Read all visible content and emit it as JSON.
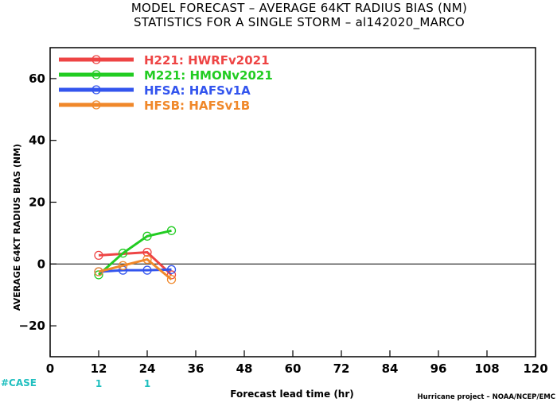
{
  "header": {
    "title_line1": "MODEL FORECAST – AVERAGE 64KT RADIUS BIAS (NM)",
    "title_line2": "STATISTICS FOR A SINGLE STORM – al142020_MARCO"
  },
  "chart_data": {
    "type": "line",
    "title": "MODEL FORECAST – AVERAGE 64KT RADIUS BIAS (NM)",
    "subtitle": "STATISTICS FOR A SINGLE STORM – al142020_MARCO",
    "xlabel": "Forecast lead time (hr)",
    "ylabel": "AVERAGE 64KT RADIUS BIAS (NM)",
    "xlim": [
      0,
      120
    ],
    "ylim": [
      -30,
      70
    ],
    "xticks": [
      0,
      12,
      24,
      36,
      48,
      60,
      72,
      84,
      96,
      108,
      120
    ],
    "yticks": [
      -20,
      0,
      20,
      40,
      60
    ],
    "grid": false,
    "zero_line": true,
    "legend_position": "top-left",
    "series": [
      {
        "code": "H221",
        "name": "HWRFv2021",
        "color": "#ee4444",
        "x": [
          12,
          24,
          30
        ],
        "y": [
          2.8,
          3.8,
          -3.5
        ]
      },
      {
        "code": "M221",
        "name": "HMONv2021",
        "color": "#22cc22",
        "x": [
          12,
          18,
          24,
          30
        ],
        "y": [
          -3.5,
          3.5,
          9.0,
          10.8
        ]
      },
      {
        "code": "HFSA",
        "name": "HAFSv1A",
        "color": "#3355ee",
        "x": [
          12,
          18,
          24,
          30
        ],
        "y": [
          -2.5,
          -2.0,
          -2.0,
          -1.8
        ]
      },
      {
        "code": "HFSB",
        "name": "HAFSv1B",
        "color": "#f0882a",
        "x": [
          12,
          18,
          24,
          30
        ],
        "y": [
          -2.5,
          -0.5,
          1.5,
          -5.0
        ]
      }
    ],
    "cases": {
      "label": "#CASE",
      "x": [
        12,
        24
      ],
      "values": [
        "1",
        "1"
      ]
    }
  },
  "footer": {
    "credit": "Hurricane project – NOAA/NCEP/EMC"
  }
}
